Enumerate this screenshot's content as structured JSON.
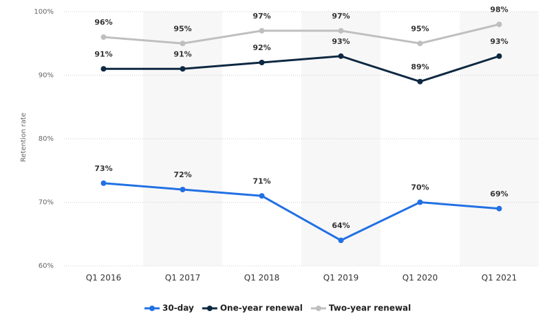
{
  "chart_data": {
    "type": "line",
    "y_axis_label": "Retention rate",
    "categories": [
      "Q1 2016",
      "Q1 2017",
      "Q1 2018",
      "Q1 2019",
      "Q1 2020",
      "Q1 2021"
    ],
    "series": [
      {
        "name": "30-day",
        "color": "#2170e4",
        "values": [
          73,
          72,
          71,
          64,
          70,
          69
        ],
        "value_labels": [
          "73%",
          "72%",
          "71%",
          "64%",
          "70%",
          "69%"
        ]
      },
      {
        "name": "One-year renewal",
        "color": "#0e2841",
        "values": [
          91,
          91,
          92,
          93,
          89,
          93
        ],
        "value_labels": [
          "91%",
          "91%",
          "92%",
          "93%",
          "89%",
          "93%"
        ]
      },
      {
        "name": "Two-year renewal",
        "color": "#bfbfbf",
        "values": [
          96,
          95,
          97,
          97,
          95,
          98
        ],
        "value_labels": [
          "96%",
          "95%",
          "97%",
          "97%",
          "95%",
          "98%"
        ]
      }
    ],
    "ylim": [
      60,
      100
    ],
    "yticks": [
      {
        "value": 60,
        "label": "60%"
      },
      {
        "value": 70,
        "label": "70%"
      },
      {
        "value": 80,
        "label": "80%"
      },
      {
        "value": 90,
        "label": "90%"
      },
      {
        "value": 100,
        "label": "100%"
      }
    ],
    "grid": true
  }
}
